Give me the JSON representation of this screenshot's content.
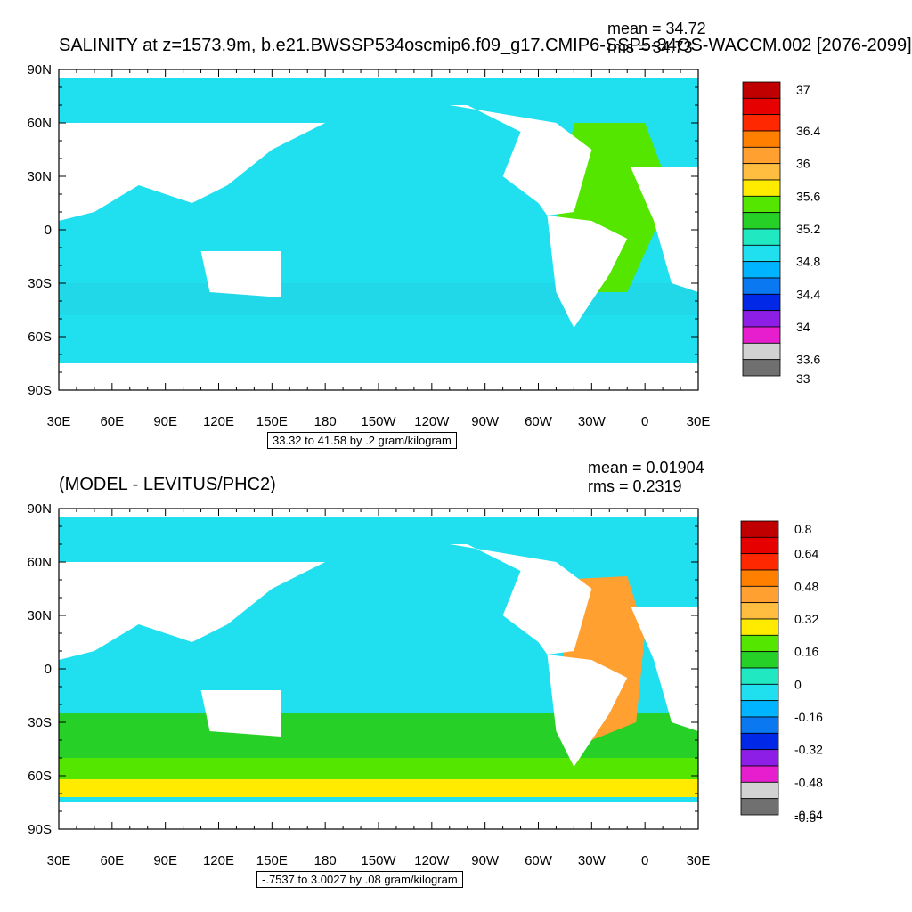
{
  "top_panel": {
    "title": "SALINITY at z=1573.9m, b.e21.BWSSP534oscmip6.f09_g17.CMIP6-SSP5-34OS-WACCM.002 [2076-2099]",
    "mean_text": "mean = 34.72",
    "rms_text": "rms = 34.73",
    "contour_info": "33.32 to 41.58 by .2 gram/kilogram",
    "colorbar": {
      "colors": [
        "#c00000",
        "#e60000",
        "#ff2800",
        "#ff7f00",
        "#ffa030",
        "#ffbe40",
        "#ffeb00",
        "#55e600",
        "#27d027",
        "#20e8c0",
        "#20e0f0",
        "#00b4ff",
        "#0a78f0",
        "#0028e6",
        "#8c1ee6",
        "#e61ecd",
        "#d2d2d2",
        "#707070"
      ],
      "labels": [
        "37",
        "36.4",
        "36",
        "35.6",
        "35.2",
        "34.8",
        "34.4",
        "34",
        "33.6",
        "33"
      ],
      "label_boundaries": [
        0,
        3,
        5,
        7,
        9,
        11,
        13,
        15,
        17,
        18
      ]
    }
  },
  "bottom_panel": {
    "title": "(MODEL - LEVITUS/PHC2)",
    "mean_text": "mean = 0.01904",
    "rms_text": "rms = 0.2319",
    "contour_info": "-.7537 to 3.0027 by .08 gram/kilogram",
    "colorbar": {
      "colors": [
        "#c00000",
        "#e60000",
        "#ff2800",
        "#ff7f00",
        "#ffa030",
        "#ffbe40",
        "#ffeb00",
        "#55e600",
        "#27d027",
        "#20e8c0",
        "#20e0f0",
        "#00b4ff",
        "#0a78f0",
        "#0028e6",
        "#8c1ee6",
        "#e61ecd",
        "#d2d2d2",
        "#707070"
      ],
      "labels": [
        "0.8",
        "0.64",
        "0.48",
        "0.32",
        "0.16",
        "0",
        "-0.16",
        "-0.32",
        "-0.48",
        "-0.64",
        "-0.8"
      ],
      "label_boundaries": [
        0,
        2,
        4,
        6,
        8,
        10,
        12,
        14,
        16,
        18,
        18
      ]
    }
  },
  "axes": {
    "lon_labels": [
      "30E",
      "60E",
      "90E",
      "120E",
      "150E",
      "180",
      "150W",
      "120W",
      "90W",
      "60W",
      "30W",
      "0",
      "30E"
    ],
    "lat_labels": [
      "90N",
      "60N",
      "30N",
      "0",
      "30S",
      "60S",
      "90S"
    ]
  },
  "legend_colors": {
    "land": "#ffffff",
    "low_salinity": "#00b4ff",
    "mid_salinity": "#20e0f0",
    "high_salinity": "#55e600"
  }
}
